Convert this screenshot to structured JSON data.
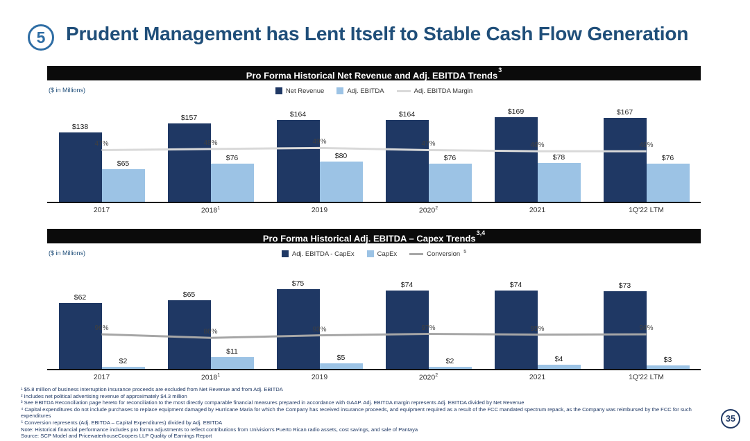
{
  "header": {
    "slide_number": "5",
    "title": "Prudent Management has Lent Itself to Stable Cash Flow Generation"
  },
  "page_number": "35",
  "chart_data": [
    {
      "type": "bar+line",
      "title": "Pro Forma Historical Net Revenue and Adj. EBITDA Trends",
      "title_sup": "3",
      "units_label": "($ in Millions)",
      "categories": [
        "2017",
        "2018",
        "2019",
        "2020",
        "2021",
        "1Q'22 LTM"
      ],
      "category_sups": [
        "",
        "1",
        "",
        "2",
        "",
        ""
      ],
      "series": [
        {
          "name": "Net Revenue",
          "color": "#1F3864",
          "values": [
            138,
            157,
            164,
            164,
            169,
            167
          ],
          "labels": [
            "$138",
            "$157",
            "$164",
            "$164",
            "$169",
            "$167"
          ]
        },
        {
          "name": "Adj. EBITDA",
          "color": "#9CC3E5",
          "values": [
            65,
            76,
            80,
            76,
            78,
            76
          ],
          "labels": [
            "$65",
            "$76",
            "$80",
            "$76",
            "$78",
            "$76"
          ]
        }
      ],
      "line": {
        "name": "Adj. EBITDA Margin",
        "name_sup": "",
        "color": "#D9D9D9",
        "values": [
          47,
          48,
          49,
          47,
          46,
          46
        ],
        "labels": [
          "47%",
          "48%",
          "49%",
          "47%",
          "46%",
          "46%"
        ]
      },
      "ylim": [
        0,
        180
      ],
      "y2lim": [
        0,
        82
      ],
      "legend_position": "top",
      "grid": false
    },
    {
      "type": "bar+line",
      "title": "Pro Forma Historical Adj. EBITDA – Capex Trends",
      "title_sup": "3,4",
      "units_label": "($ in Millions)",
      "categories": [
        "2017",
        "2018",
        "2019",
        "2020",
        "2021",
        "1Q'22 LTM"
      ],
      "category_sups": [
        "",
        "1",
        "",
        "2",
        "",
        ""
      ],
      "series": [
        {
          "name": "Adj. EBITDA - CapEx",
          "color": "#1F3864",
          "values": [
            62,
            65,
            75,
            74,
            74,
            73
          ],
          "labels": [
            "$62",
            "$65",
            "$75",
            "$74",
            "$74",
            "$73"
          ]
        },
        {
          "name": "CapEx",
          "color": "#9CC3E5",
          "values": [
            2,
            11,
            5,
            2,
            4,
            3
          ],
          "labels": [
            "$2",
            "$11",
            "$5",
            "$2",
            "$4",
            "$3"
          ]
        }
      ],
      "line": {
        "name": "Conversion",
        "name_sup": "5",
        "color": "#A6A6A6",
        "values": [
          96,
          86,
          93,
          97,
          95,
          96
        ],
        "labels": [
          "96%",
          "86%",
          "93%",
          "97%",
          "95%",
          "96%"
        ]
      },
      "ylim": [
        0,
        85
      ],
      "y2lim": [
        0,
        250
      ],
      "legend_position": "top",
      "grid": false
    }
  ],
  "footnotes": [
    "¹ $5.8 million of business interruption insurance proceeds are excluded from Net Revenue and from Adj. EBITDA",
    "² Includes net political advertising revenue of approximately $4.3 million",
    "³ See EBITDA Reconciliation page hereto for reconciliation to the most directly comparable financial measures prepared in accordance with GAAP. Adj. EBITDA margin represents Adj. EBITDA divided by Net Revenue",
    "⁴ Capital expenditures do not include purchases to replace equipment damaged by Hurricane Maria for which the Company has received insurance proceeds, and equipment required as a result of the FCC mandated spectrum repack, as the Company was reimbursed by the FCC for such expenditures",
    "⁵ Conversion represents (Adj. EBITDA – Capital Expenditures) divided by Adj. EBITDA",
    "Note: Historical financial performance includes pro forma adjustments to reflect contributions from Univision's Puerto Rican radio assets, cost savings, and sale of Pantaya",
    "Source: SCP Model and PricewaterhouseCoopers LLP Quality of Earnings Report"
  ]
}
